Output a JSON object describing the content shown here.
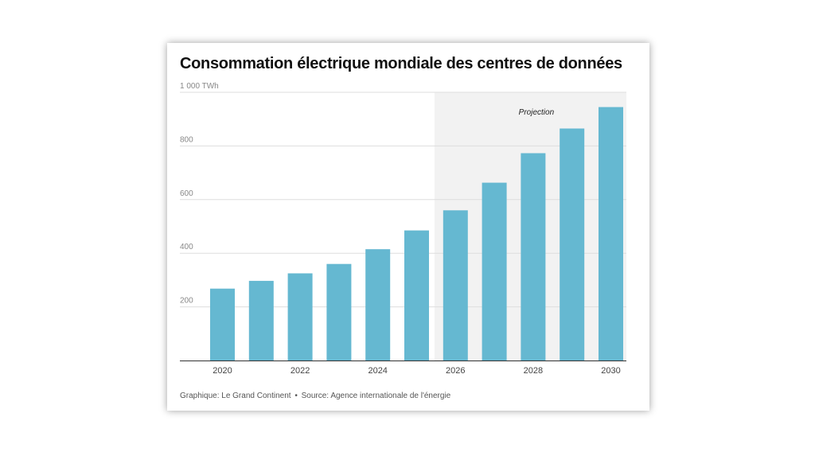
{
  "chart_data": {
    "type": "bar",
    "title": "Consommation électrique mondiale des centres de données",
    "ylabel": "",
    "xlabel": "",
    "ylim": [
      0,
      1000
    ],
    "grid": true,
    "categories": [
      "2020",
      "2021",
      "2022",
      "2023",
      "2024",
      "2025",
      "2026",
      "2027",
      "2028",
      "2029",
      "2030"
    ],
    "values": [
      268,
      297,
      325,
      360,
      415,
      485,
      560,
      663,
      773,
      865,
      945
    ],
    "x_tick_labels": [
      "2020",
      "2022",
      "2024",
      "2026",
      "2028",
      "2030"
    ],
    "y_ticks": [
      {
        "value": 200,
        "label": "200"
      },
      {
        "value": 400,
        "label": "400"
      },
      {
        "value": 600,
        "label": "600"
      },
      {
        "value": 800,
        "label": "800"
      },
      {
        "value": 1000,
        "label": "1 000 TWh"
      }
    ],
    "shaded_region": {
      "from": "2026",
      "to": "2030",
      "label": "Projection"
    },
    "bar_color": "#65b8d1",
    "shade_color": "#f2f2f2"
  },
  "footer": {
    "graphic_credit": "Graphique: Le Grand Continent",
    "separator": "•",
    "source": "Source: Agence internationale de l'énergie"
  }
}
